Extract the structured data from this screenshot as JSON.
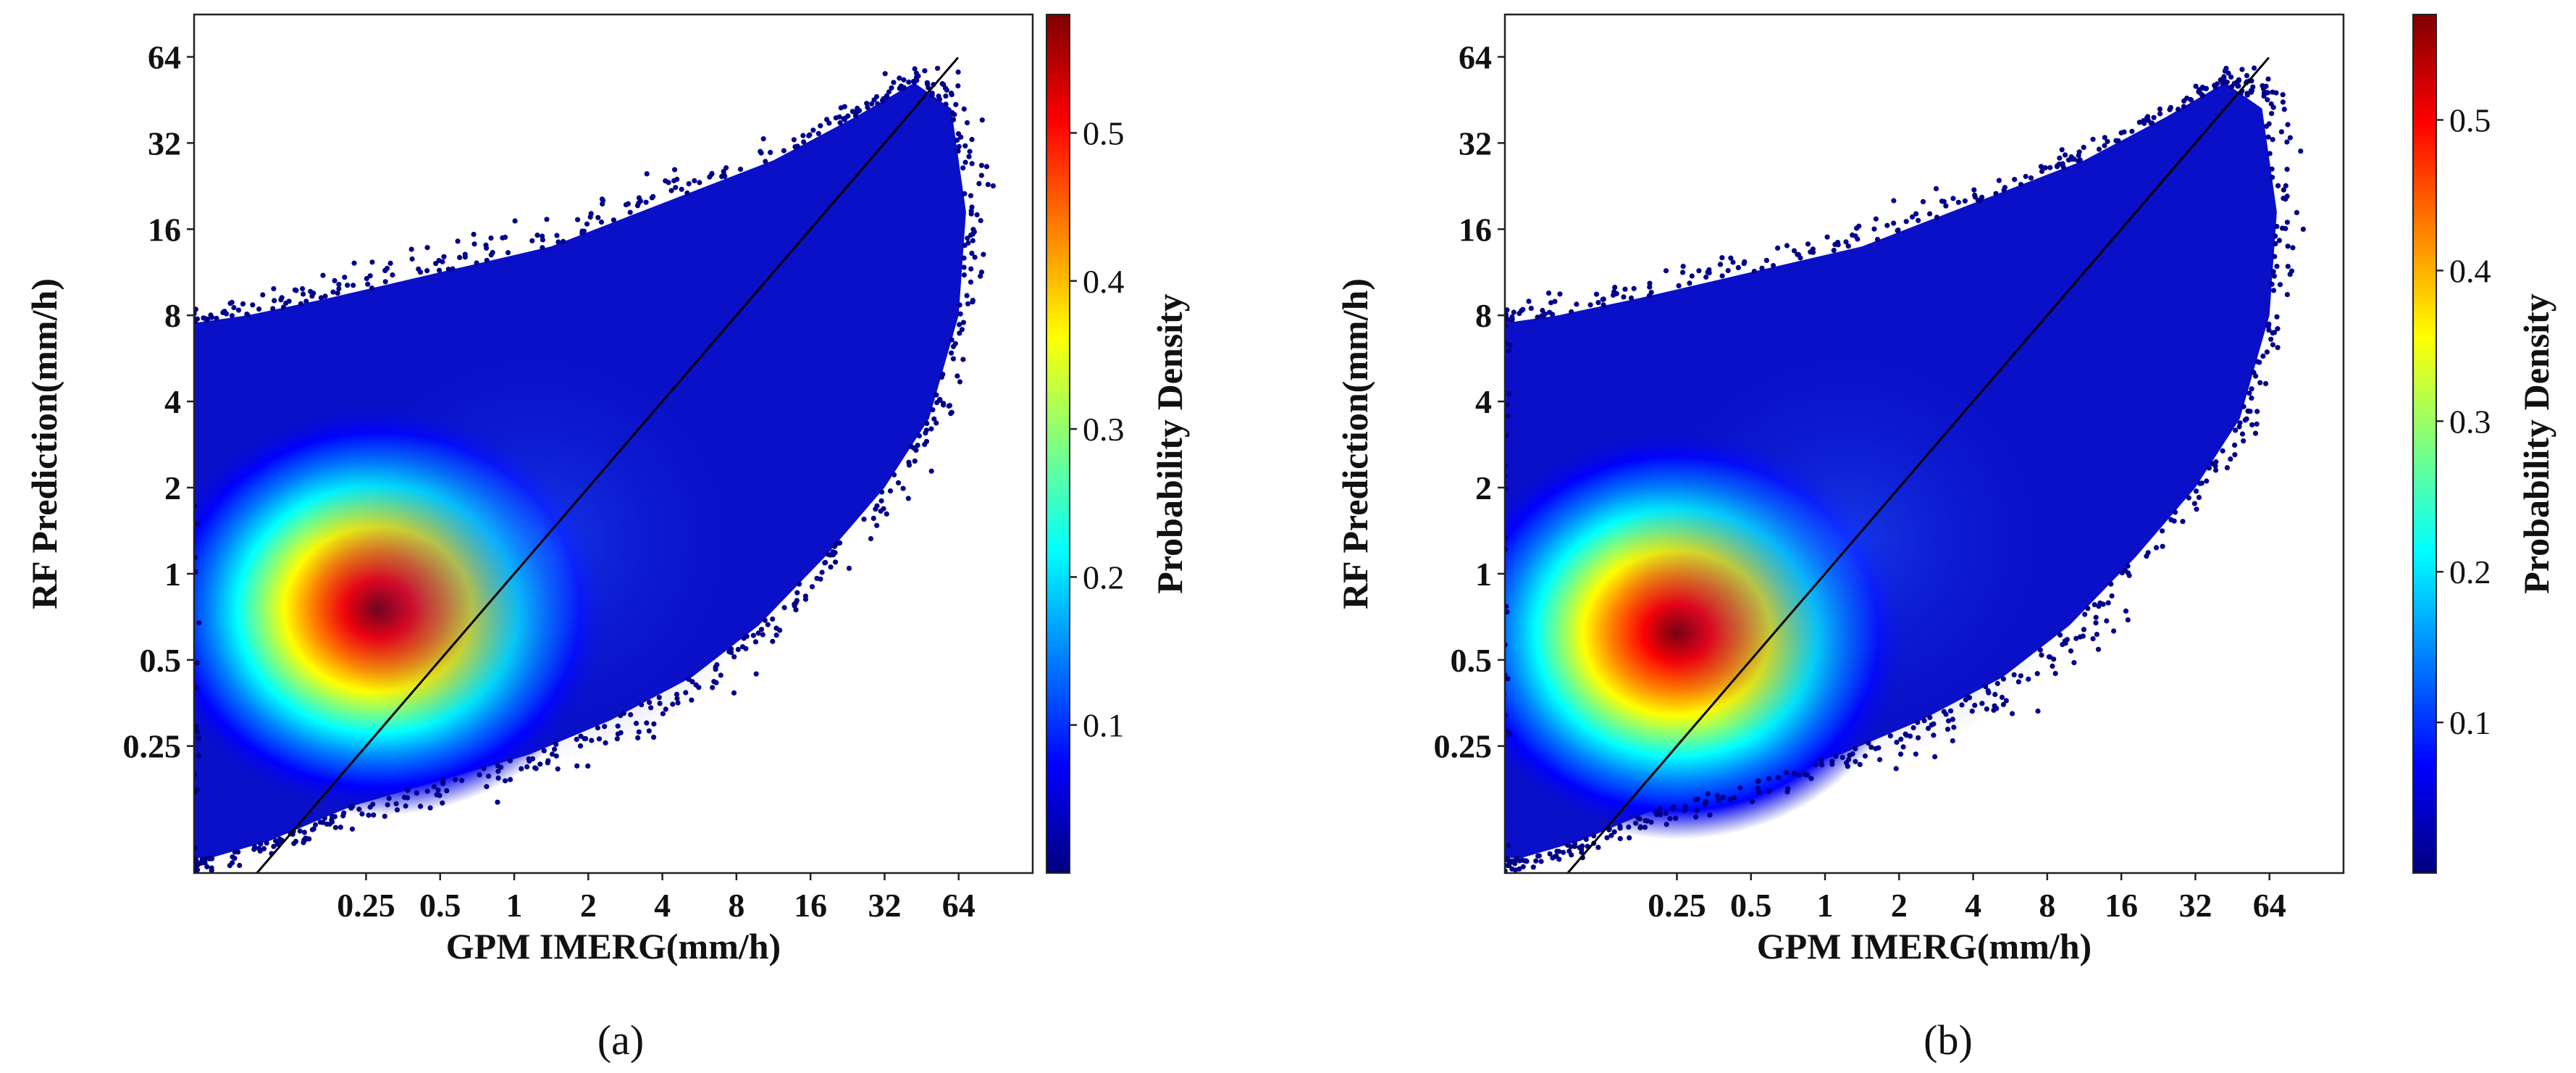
{
  "colorbar_label": "Probability Density",
  "colormap": [
    "#00007f",
    "#0000ff",
    "#007fff",
    "#00ffff",
    "#7fff7f",
    "#ffff00",
    "#ff7f00",
    "#ff0000",
    "#7f0000"
  ],
  "point_color": "#00008b",
  "chart_data": [
    {
      "type": "scatter",
      "panel_label": "(a)",
      "xlabel": "GPM IMERG(mm/h)",
      "ylabel": "RF Prediction(mm/h)",
      "x_scale": "log2",
      "y_scale": "log2",
      "x_ticks": [
        0.25,
        0.5,
        1,
        2,
        4,
        8,
        16,
        32,
        64
      ],
      "x_tick_labels": [
        "0.25",
        "0.5",
        "1",
        "2",
        "4",
        "8",
        "16",
        "32",
        "64"
      ],
      "y_ticks": [
        0.25,
        0.5,
        1,
        2,
        4,
        8,
        16,
        32,
        64
      ],
      "y_tick_labels": [
        "0.25",
        "0.5",
        "1",
        "2",
        "4",
        "8",
        "16",
        "32",
        "64"
      ],
      "xlim": [
        0.05,
        128
      ],
      "ylim": [
        0.09,
        90
      ],
      "reference_line": "1:1",
      "density_peak": {
        "x": 0.28,
        "y": 0.75
      },
      "colorbar": {
        "min": 0.0,
        "max": 0.58,
        "ticks": [
          0.1,
          0.2,
          0.3,
          0.4,
          0.5
        ],
        "tick_labels": [
          "0.1",
          "0.2",
          "0.3",
          "0.4",
          "0.5"
        ]
      }
    },
    {
      "type": "scatter",
      "panel_label": "(b)",
      "xlabel": "GPM IMERG(mm/h)",
      "ylabel": "RF Prediction(mm/h)",
      "x_scale": "log2",
      "y_scale": "log2",
      "x_ticks": [
        0.25,
        0.5,
        1,
        2,
        4,
        8,
        16,
        32,
        64
      ],
      "x_tick_labels": [
        "0.25",
        "0.5",
        "1",
        "2",
        "4",
        "8",
        "16",
        "32",
        "64"
      ],
      "y_ticks": [
        0.25,
        0.5,
        1,
        2,
        4,
        8,
        16,
        32,
        64
      ],
      "y_tick_labels": [
        "0.25",
        "0.5",
        "1",
        "2",
        "4",
        "8",
        "16",
        "32",
        "64"
      ],
      "xlim": [
        0.05,
        128
      ],
      "ylim": [
        0.09,
        90
      ],
      "reference_line": "1:1",
      "density_peak": {
        "x": 0.25,
        "y": 0.62
      },
      "colorbar": {
        "min": 0.0,
        "max": 0.57,
        "ticks": [
          0.1,
          0.2,
          0.3,
          0.4,
          0.5
        ],
        "tick_labels": [
          "0.1",
          "0.2",
          "0.3",
          "0.4",
          "0.5"
        ]
      }
    }
  ]
}
